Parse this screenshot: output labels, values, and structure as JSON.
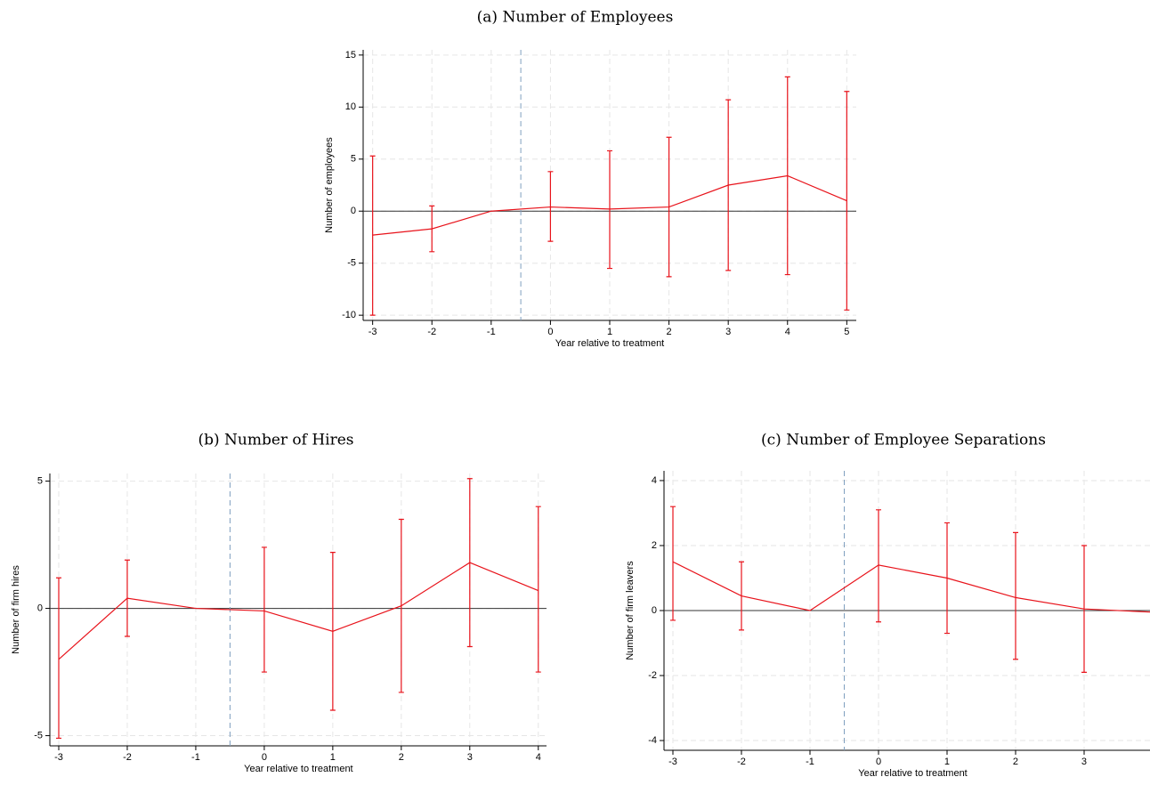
{
  "chart_data": [
    {
      "type": "line",
      "title": "(a)  Number of Employees",
      "xlabel": "Year relative to treatment",
      "ylabel": "Number of employees",
      "x": [
        -3,
        -2,
        -1,
        0,
        1,
        2,
        3,
        4,
        5
      ],
      "series": [
        {
          "color": "#e8131b",
          "values": [
            -2.3,
            -1.7,
            0,
            0.4,
            0.2,
            0.4,
            2.5,
            3.4,
            1.0
          ],
          "ci_lower": [
            -10.0,
            -3.9,
            null,
            -2.9,
            -5.5,
            -6.3,
            -5.7,
            -6.1,
            -9.5
          ],
          "ci_upper": [
            5.3,
            0.5,
            null,
            3.8,
            5.8,
            7.1,
            10.7,
            12.9,
            11.5
          ]
        }
      ],
      "xlim": [
        -3.16,
        5.16
      ],
      "ylim": [
        -10.5,
        15.5
      ],
      "xticks": [
        -3,
        -2,
        -1,
        0,
        1,
        2,
        3,
        4,
        5
      ],
      "yticks": [
        -10,
        -5,
        0,
        5,
        10,
        15
      ],
      "vline": -0.5,
      "hline": 0,
      "grid": true
    },
    {
      "type": "line",
      "title": "(b)  Number of Hires",
      "xlabel": "Year relative to treatment",
      "ylabel": "Number of firm hires",
      "x": [
        -3,
        -2,
        -1,
        0,
        1,
        2,
        3,
        4
      ],
      "series": [
        {
          "color": "#e8131b",
          "values": [
            -2.0,
            0.4,
            0,
            -0.1,
            -0.9,
            0.1,
            1.8,
            0.7
          ],
          "ci_lower": [
            -5.1,
            -1.1,
            null,
            -2.5,
            -4.0,
            -3.3,
            -1.5,
            -2.5
          ],
          "ci_upper": [
            1.2,
            1.9,
            null,
            2.4,
            2.2,
            3.5,
            5.1,
            4.0
          ]
        }
      ],
      "xlim": [
        -3.13,
        4.12
      ],
      "ylim": [
        -5.4,
        5.3
      ],
      "xticks": [
        -3,
        -2,
        -1,
        0,
        1,
        2,
        3,
        4
      ],
      "yticks": [
        -5,
        0,
        5
      ],
      "vline": -0.5,
      "hline": 0,
      "grid": true
    },
    {
      "type": "line",
      "title": "(c)  Number of Employee Separations",
      "xlabel": "Year relative to treatment",
      "ylabel": "Number of firm leavers",
      "x": [
        -3,
        -2,
        -1,
        0,
        1,
        2,
        3,
        4
      ],
      "series": [
        {
          "color": "#e8131b",
          "values": [
            1.5,
            0.45,
            0,
            1.4,
            1.0,
            0.4,
            0.05,
            -0.05
          ],
          "ci_lower": [
            -0.3,
            -0.6,
            null,
            -0.35,
            -0.7,
            -1.5,
            -1.9,
            null
          ],
          "ci_upper": [
            3.2,
            1.5,
            null,
            3.1,
            2.7,
            2.4,
            2.0,
            null
          ]
        }
      ],
      "xlim": [
        -3.13,
        4.13
      ],
      "ylim": [
        -4.3,
        4.3
      ],
      "xticks": [
        -3,
        -2,
        -1,
        0,
        1,
        2,
        3,
        4
      ],
      "yticks": [
        -4,
        -2,
        0,
        2,
        4
      ],
      "vline": -0.5,
      "hline": 0,
      "grid": true
    }
  ]
}
